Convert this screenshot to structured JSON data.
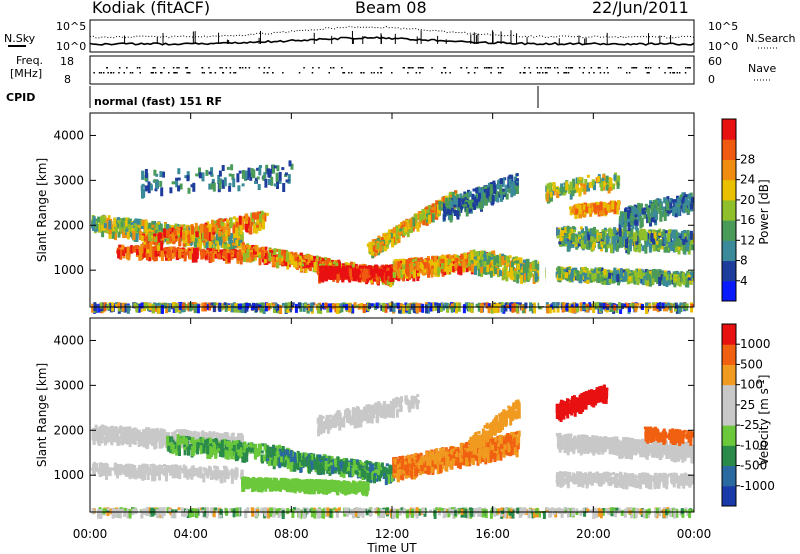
{
  "header": {
    "station": "Kodiak (fitACF)",
    "beam": "Beam 08",
    "date": "22/Jun/2011"
  },
  "noise_panel": {
    "left_label": "N.Sky",
    "right_label": "N.Search",
    "right_ticks": [
      "10^5",
      "10^0"
    ],
    "left_ticks": [
      "10^5",
      "10^0"
    ]
  },
  "freq_panel": {
    "left_label_1": "Freq.",
    "left_label_2": "[MHz]",
    "left_ticks": [
      "18",
      "8"
    ],
    "right_label": "Nave",
    "right_ticks": [
      "60",
      "0"
    ]
  },
  "cpid": {
    "label": "CPID",
    "value": "normal (fast) 151 RF"
  },
  "chart_data": [
    {
      "type": "heatmap",
      "name": "Power",
      "ylabel": "Slant Range [km]",
      "ylim": [
        180,
        4500
      ],
      "yticks": [
        "1000",
        "2000",
        "3000",
        "4000"
      ],
      "colorbar_label": "Power [dB]",
      "colorbar_ticks": [
        "4",
        "8",
        "12",
        "16",
        "20",
        "24",
        "28"
      ],
      "colors": [
        "#0a1aff",
        "#1e3c9c",
        "#3a8a9a",
        "#4a9a5a",
        "#8fbf2a",
        "#e8c000",
        "#f08c10",
        "#f05a10",
        "#e81010"
      ]
    },
    {
      "type": "heatmap",
      "name": "Velocity",
      "ylabel": "Slant Range [km]",
      "ylim": [
        180,
        4500
      ],
      "yticks": [
        "1000",
        "2000",
        "3000",
        "4000"
      ],
      "xlabel": "Time UT",
      "xticks": [
        "00:00",
        "04:00",
        "08:00",
        "12:00",
        "16:00",
        "20:00",
        "00:00"
      ],
      "colorbar_label": "Velocity [m s",
      "colorbar_label_sup": "-1",
      "colorbar_label_end": "]",
      "colorbar_ticks": [
        "1000",
        "500",
        "100",
        "25",
        "-25",
        "-100",
        "-500",
        "-1000"
      ],
      "colors": [
        "#1a3aaa",
        "#2a6aa0",
        "#2a8a4a",
        "#6ac83a",
        "#c8c8c8",
        "#c8c8c8",
        "#f09a20",
        "#f06010",
        "#e81010"
      ]
    }
  ]
}
